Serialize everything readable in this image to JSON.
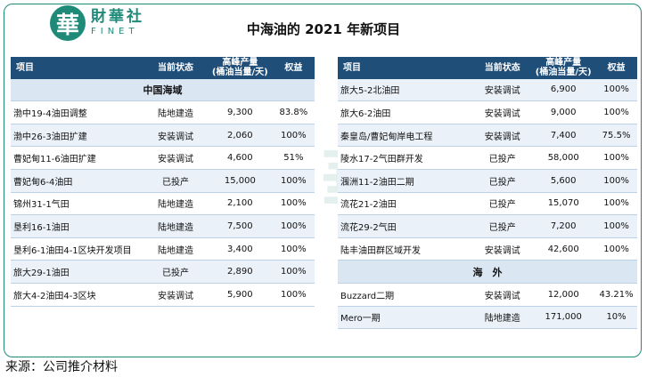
{
  "logo": {
    "mark": "華",
    "cn": "財華社",
    "en": "FINET"
  },
  "title": "中海油的 2021 年新项目",
  "headers": {
    "name": "项目",
    "status": "当前状态",
    "capacity": "高峰产量\n(桶油当量/天)",
    "equity": "权益"
  },
  "left_table": {
    "section": "中国海域",
    "rows": [
      {
        "name": "渤中19-4油田调整",
        "status": "陆地建造",
        "capacity": "9,300",
        "equity": "83.8%"
      },
      {
        "name": "渤中26-3油田扩建",
        "status": "安装调试",
        "capacity": "2,060",
        "equity": "100%"
      },
      {
        "name": "曹妃甸11-6油田扩建",
        "status": "安装调试",
        "capacity": "4,600",
        "equity": "51%"
      },
      {
        "name": "曹妃甸6-4油田",
        "status": "已投产",
        "capacity": "15,000",
        "equity": "100%"
      },
      {
        "name": "锦州31-1气田",
        "status": "陆地建造",
        "capacity": "2,100",
        "equity": "100%"
      },
      {
        "name": "垦利16-1油田",
        "status": "陆地建造",
        "capacity": "7,500",
        "equity": "100%"
      },
      {
        "name": "垦利6-1油田4-1区块开发项目",
        "status": "陆地建造",
        "capacity": "3,400",
        "equity": "100%"
      },
      {
        "name": "旅大29-1油田",
        "status": "已投产",
        "capacity": "2,890",
        "equity": "100%"
      },
      {
        "name": "旅大4-2油田4-3区块",
        "status": "安装调试",
        "capacity": "5,900",
        "equity": "100%"
      }
    ]
  },
  "right_table": {
    "rows": [
      {
        "name": "旅大5-2北油田",
        "status": "安装调试",
        "capacity": "6,900",
        "equity": "100%"
      },
      {
        "name": "旅大6-2油田",
        "status": "安装调试",
        "capacity": "9,000",
        "equity": "100%"
      },
      {
        "name": "秦皇岛/曹妃甸岸电工程",
        "status": "安装调试",
        "capacity": "7,400",
        "equity": "75.5%"
      },
      {
        "name": "陵水17-2气田群开发",
        "status": "已投产",
        "capacity": "58,000",
        "equity": "100%"
      },
      {
        "name": "涠洲11-2油田二期",
        "status": "已投产",
        "capacity": "5,600",
        "equity": "100%"
      },
      {
        "name": "流花21-2油田",
        "status": "已投产",
        "capacity": "15,070",
        "equity": "100%"
      },
      {
        "name": "流花29-2气田",
        "status": "已投产",
        "capacity": "7,200",
        "equity": "100%"
      },
      {
        "name": "陆丰油田群区域开发",
        "status": "安装调试",
        "capacity": "42,600",
        "equity": "100%"
      }
    ],
    "section": "海　外",
    "overseas_rows": [
      {
        "name": "Buzzard二期",
        "status": "安装调试",
        "capacity": "12,000",
        "equity": "43.21%"
      },
      {
        "name": "Mero一期",
        "status": "陆地建造",
        "capacity": "171,000",
        "equity": "10%"
      }
    ]
  },
  "source": "来源：公司推介材料",
  "colors": {
    "brand": "#1f8a78",
    "header": "#1f4e79",
    "row_alt": "#eaf1f9"
  }
}
